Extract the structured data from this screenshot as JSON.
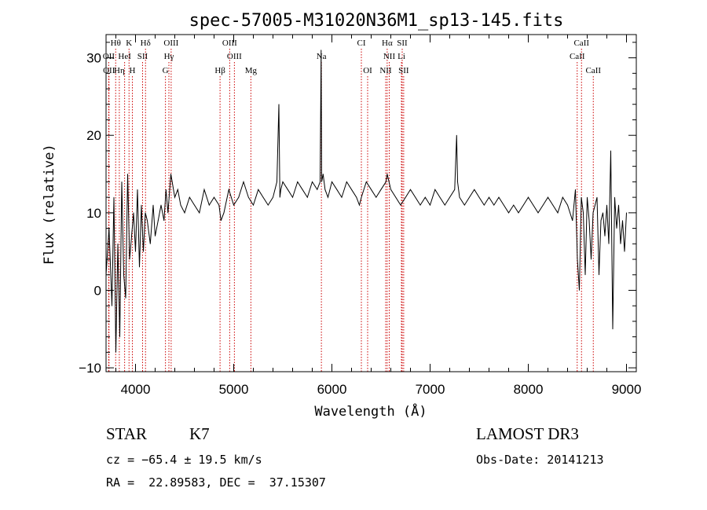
{
  "chart_data": {
    "type": "line",
    "title": "spec-57005-M31020N36M1_sp13-145.fits",
    "xlabel": "Wavelength (Å)",
    "ylabel": "Flux (relative)",
    "xlim": [
      3700,
      9100
    ],
    "ylim": [
      -10.5,
      33
    ],
    "xticks": [
      4000,
      5000,
      6000,
      7000,
      8000,
      9000
    ],
    "yticks": [
      -10,
      0,
      10,
      20,
      30
    ],
    "x_minor_step": 200,
    "y_minor_step": 2,
    "series": [
      {
        "name": "flux",
        "x": [
          3700,
          3730,
          3760,
          3780,
          3800,
          3820,
          3840,
          3860,
          3880,
          3900,
          3920,
          3940,
          3960,
          3980,
          4000,
          4020,
          4040,
          4060,
          4080,
          4100,
          4120,
          4150,
          4180,
          4200,
          4230,
          4260,
          4290,
          4310,
          4330,
          4360,
          4400,
          4430,
          4460,
          4500,
          4550,
          4600,
          4650,
          4700,
          4750,
          4800,
          4850,
          4870,
          4900,
          4950,
          5000,
          5050,
          5100,
          5150,
          5200,
          5250,
          5300,
          5350,
          5400,
          5440,
          5460,
          5470,
          5480,
          5500,
          5550,
          5600,
          5650,
          5700,
          5750,
          5800,
          5850,
          5880,
          5890,
          5896,
          5910,
          5930,
          5960,
          6000,
          6050,
          6100,
          6150,
          6200,
          6250,
          6280,
          6300,
          6350,
          6400,
          6450,
          6500,
          6550,
          6563,
          6600,
          6650,
          6700,
          6750,
          6800,
          6850,
          6900,
          6950,
          7000,
          7050,
          7100,
          7150,
          7200,
          7250,
          7270,
          7280,
          7300,
          7350,
          7400,
          7450,
          7500,
          7550,
          7600,
          7650,
          7700,
          7750,
          7800,
          7850,
          7900,
          7950,
          8000,
          8050,
          8100,
          8150,
          8200,
          8250,
          8300,
          8350,
          8400,
          8450,
          8480,
          8500,
          8520,
          8540,
          8560,
          8580,
          8600,
          8620,
          8640,
          8660,
          8680,
          8700,
          8720,
          8740,
          8760,
          8780,
          8800,
          8820,
          8840,
          8860,
          8880,
          8900,
          8920,
          8940,
          8960,
          8980,
          9000
        ],
        "values": [
          2,
          8,
          -2,
          12,
          -8,
          6,
          -6,
          14,
          2,
          -1,
          15,
          4,
          7,
          10,
          5,
          13,
          3,
          11,
          5,
          10,
          9,
          6,
          11,
          7,
          9,
          11,
          9,
          13,
          10,
          15,
          12,
          13,
          11,
          10,
          12,
          11,
          10,
          13,
          11,
          12,
          11,
          9,
          10,
          13,
          11,
          12,
          14,
          12,
          11,
          13,
          12,
          11,
          12,
          14,
          24,
          12,
          13,
          14,
          13,
          12,
          14,
          13,
          12,
          14,
          13,
          14,
          31,
          14,
          15,
          13,
          12,
          14,
          13,
          12,
          14,
          13,
          12,
          11,
          12,
          14,
          13,
          12,
          13,
          14,
          15,
          13,
          12,
          11,
          12,
          13,
          12,
          11,
          12,
          11,
          13,
          12,
          11,
          12,
          13,
          20,
          14,
          12,
          11,
          12,
          13,
          12,
          11,
          12,
          11,
          12,
          11,
          10,
          11,
          10,
          11,
          12,
          11,
          10,
          11,
          12,
          11,
          10,
          12,
          11,
          9,
          13,
          4,
          0,
          12,
          10,
          2,
          12,
          9,
          4,
          10,
          11,
          12,
          2,
          9,
          10,
          7,
          11,
          6,
          18,
          -5,
          12,
          8,
          11,
          6,
          9,
          5,
          10
        ]
      }
    ],
    "emission_lines": [
      {
        "label": "Hθ",
        "x": 3798,
        "row": 1
      },
      {
        "label": "K",
        "x": 3934,
        "row": 1
      },
      {
        "label": "Hδ",
        "x": 4102,
        "row": 1
      },
      {
        "label": "OIII",
        "x": 4363,
        "row": 1
      },
      {
        "label": "OIII",
        "x": 4959,
        "row": 1
      },
      {
        "label": "CI",
        "x": 6300,
        "row": 1
      },
      {
        "label": "Hα",
        "x": 6563,
        "row": 1
      },
      {
        "label": "SII",
        "x": 6716,
        "row": 1
      },
      {
        "label": "CaII",
        "x": 8542,
        "row": 1
      },
      {
        "label": "OII",
        "x": 3727,
        "row": 2
      },
      {
        "label": "HeI",
        "x": 3889,
        "row": 2
      },
      {
        "label": "SII",
        "x": 4072,
        "row": 2
      },
      {
        "label": "Hγ",
        "x": 4340,
        "row": 2
      },
      {
        "label": "OIII",
        "x": 5007,
        "row": 2
      },
      {
        "label": "Na",
        "x": 5893,
        "row": 2
      },
      {
        "label": "NII",
        "x": 6584,
        "row": 2
      },
      {
        "label": "Li",
        "x": 6708,
        "row": 2
      },
      {
        "label": "CaII",
        "x": 8498,
        "row": 2
      },
      {
        "label": "OII",
        "x": 3730,
        "row": 3
      },
      {
        "label": "Hη",
        "x": 3835,
        "row": 3
      },
      {
        "label": "H",
        "x": 3968,
        "row": 3
      },
      {
        "label": "G",
        "x": 4305,
        "row": 3
      },
      {
        "label": "Hβ",
        "x": 4861,
        "row": 3
      },
      {
        "label": "Mg",
        "x": 5175,
        "row": 3
      },
      {
        "label": "OI",
        "x": 6364,
        "row": 3
      },
      {
        "label": "NII",
        "x": 6548,
        "row": 3
      },
      {
        "label": "SII",
        "x": 6731,
        "row": 3
      },
      {
        "label": "CaII",
        "x": 8662,
        "row": 3
      }
    ]
  },
  "info": {
    "class": "STAR",
    "subclass": "K7",
    "survey": "LAMOST DR3",
    "cz": "cz = −65.4 ± 19.5 km/s",
    "obs_date": "Obs-Date: 20141213",
    "coords": "RA =  22.89583, DEC =  37.15307"
  },
  "colors": {
    "line": "#000000",
    "marker": "#cc0000"
  }
}
